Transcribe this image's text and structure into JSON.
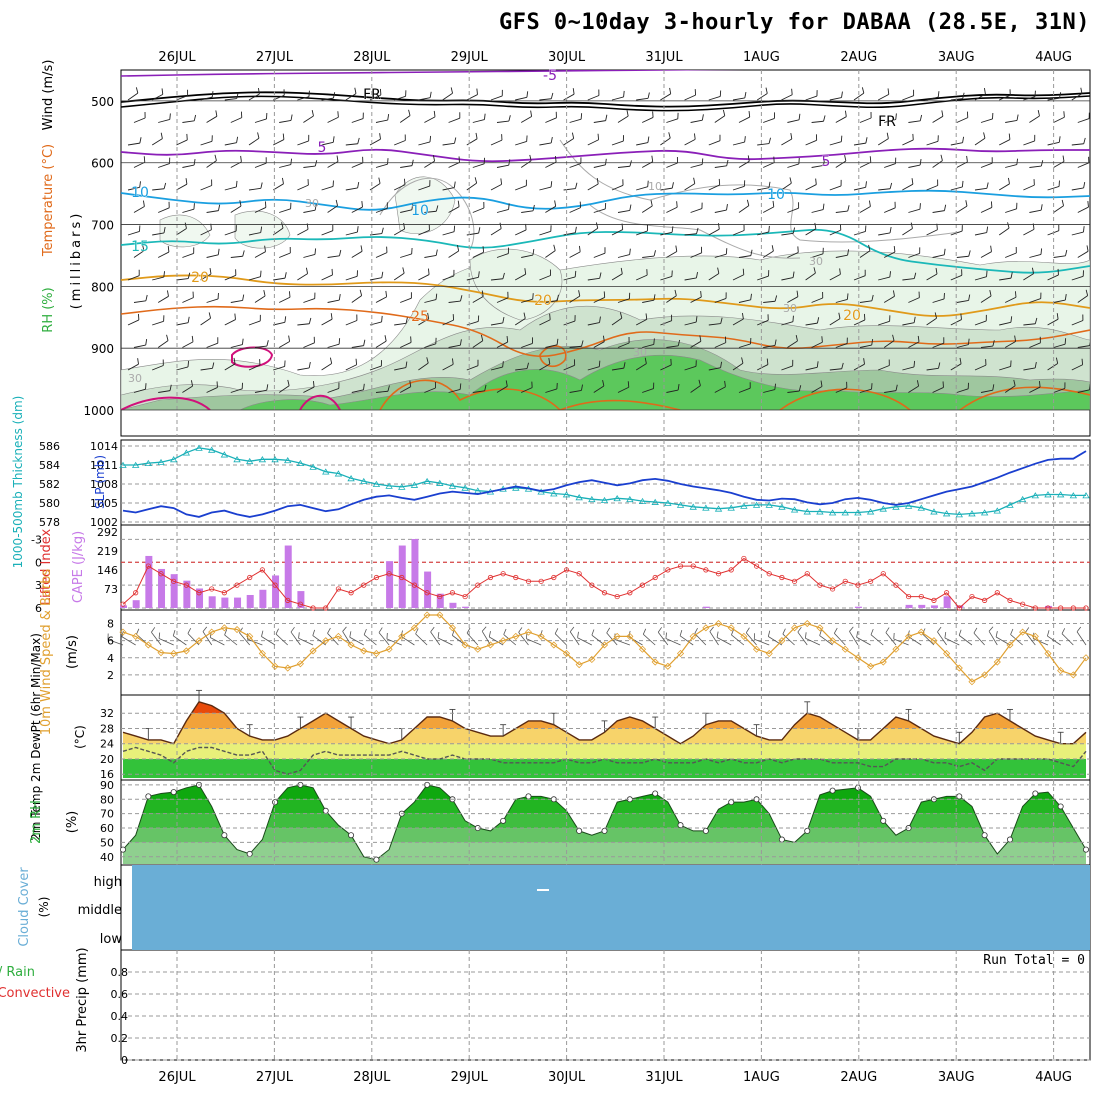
{
  "title": "GFS 0~10day 3-hourly for DABAA (28.5E, 31N)",
  "colors": {
    "purple": "#8a1fb8",
    "black": "#000000",
    "cyan": "#1a9fe0",
    "teal": "#1bb8b8",
    "orange": "#e09a1a",
    "darkorange": "#e06a1a",
    "magenta": "#d0107a",
    "rh_dark": "#2fae3f",
    "rh_mid": "#7fd07f",
    "rh_light": "#cfeecf",
    "gray": "#9a9a9a",
    "slp": "#1a3fcf",
    "thick": "#1ab0b8",
    "li": "#e03030",
    "cape": "#c77ae8",
    "wind": "#e0a030",
    "cloud": "#6aaed6"
  },
  "chart_data": [
    {
      "type": "contour",
      "panel": "upper-air",
      "ylabel_segments": [
        "RH (%)",
        "Temperature (°C)",
        "Wind (m/s)"
      ],
      "yunit": "(millibars)",
      "x_labels": [
        "26JUL",
        "27JUL",
        "28JUL",
        "29JUL",
        "30JUL",
        "31JUL",
        "1AUG",
        "2AUG",
        "3AUG",
        "4AUG"
      ],
      "y_ticks": [
        500,
        600,
        700,
        800,
        900,
        1000
      ],
      "ylim": [
        450,
        1000
      ],
      "isotherms": [
        {
          "name": "-5",
          "values": [
            -5,
            -5,
            -5
          ]
        },
        {
          "name": "FR",
          "values": [
            0,
            0
          ]
        },
        {
          "name": "5",
          "values": [
            5,
            5
          ]
        },
        {
          "name": "10",
          "values": [
            10,
            10,
            10
          ]
        },
        {
          "name": "15",
          "values": [
            15,
            15
          ]
        },
        {
          "name": "20",
          "values": [
            20,
            20,
            20
          ]
        },
        {
          "name": "25",
          "values": [
            25
          ]
        }
      ],
      "contour_labels": [
        "-5",
        "FR",
        "FR",
        "5",
        "5",
        "10",
        "10",
        "10",
        "15",
        "20",
        "20",
        "20",
        "25",
        "10",
        "30",
        "30",
        "30",
        "30",
        "30"
      ]
    },
    {
      "type": "line",
      "panel": "slp-thickness",
      "ylabel_left": "1000-500mb Thickness (dm)",
      "ylabel_right": "SLP (mb)",
      "thickness_ticks": [
        578,
        580,
        582,
        584,
        586
      ],
      "slp_ticks": [
        1002,
        1005,
        1008,
        1011,
        1014
      ],
      "series": [
        {
          "name": "thickness",
          "values": [
            584.0,
            584.0,
            584.2,
            584.3,
            584.6,
            585.3,
            585.8,
            585.6,
            585.1,
            584.6,
            584.4,
            584.6,
            584.6,
            584.5,
            584.2,
            583.8,
            583.3,
            583.1,
            582.6,
            582.3,
            582.0,
            581.8,
            581.7,
            581.9,
            582.3,
            582.1,
            581.8,
            581.6,
            581.3,
            581.2,
            581.5,
            581.6,
            581.5,
            581.2,
            581.0,
            580.9,
            580.6,
            580.4,
            580.3,
            580.5,
            580.4,
            580.2,
            580.1,
            580.0,
            579.8,
            579.6,
            579.5,
            579.4,
            579.5,
            579.7,
            579.8,
            579.8,
            579.6,
            579.3,
            579.1,
            579.1,
            579.0,
            579.0,
            579.0,
            579.1,
            579.4,
            579.6,
            579.7,
            579.5,
            579.1,
            578.9,
            578.8,
            578.9,
            579.0,
            579.2,
            579.8,
            580.4,
            580.8,
            580.9,
            580.9,
            580.8,
            580.8
          ]
        },
        {
          "name": "slp",
          "values": [
            1003.8,
            1003.5,
            1004.0,
            1004.5,
            1004.2,
            1003.2,
            1002.8,
            1003.5,
            1003.8,
            1003.2,
            1002.8,
            1003.2,
            1003.8,
            1004.5,
            1004.7,
            1004.2,
            1003.7,
            1004.0,
            1004.8,
            1005.5,
            1006.0,
            1006.2,
            1005.8,
            1005.5,
            1006.0,
            1006.5,
            1006.8,
            1006.6,
            1006.4,
            1006.8,
            1007.2,
            1007.6,
            1007.3,
            1006.9,
            1007.2,
            1007.8,
            1008.3,
            1008.6,
            1008.2,
            1007.8,
            1008.1,
            1008.6,
            1008.8,
            1008.5,
            1008.0,
            1007.6,
            1007.3,
            1007.0,
            1006.6,
            1006.0,
            1005.5,
            1005.4,
            1005.7,
            1005.6,
            1005.1,
            1004.8,
            1005.0,
            1005.6,
            1005.8,
            1005.5,
            1005.0,
            1004.7,
            1005.0,
            1005.6,
            1006.2,
            1006.8,
            1007.2,
            1007.6,
            1008.3,
            1009.0,
            1009.8,
            1010.5,
            1011.2,
            1011.8,
            1012.0,
            1012.0,
            1013.2
          ]
        }
      ]
    },
    {
      "type": "bar",
      "panel": "instability",
      "ylabel_left": "Lifted Index",
      "ylabel_right": "CAPE (J/kg)",
      "li_ticks": [
        -3,
        0,
        3,
        6
      ],
      "cape_ticks": [
        73,
        146,
        219,
        292
      ],
      "series": [
        {
          "name": "lifted_index",
          "values": [
            5.5,
            4.0,
            0.5,
            1.5,
            2.5,
            3.0,
            4.0,
            3.5,
            4.0,
            3.0,
            2.0,
            1.0,
            3.0,
            5.0,
            5.5,
            6.0,
            6.0,
            3.5,
            4.0,
            3.0,
            2.0,
            1.5,
            2.0,
            3.0,
            4.0,
            4.5,
            4.0,
            4.5,
            3.0,
            2.0,
            1.5,
            2.0,
            2.5,
            2.5,
            2.0,
            1.0,
            1.5,
            3.0,
            4.0,
            4.5,
            4.0,
            3.0,
            2.0,
            1.0,
            0.5,
            0.5,
            1.0,
            1.5,
            1.0,
            -0.5,
            0.5,
            1.5,
            2.0,
            2.5,
            1.5,
            3.0,
            3.5,
            2.5,
            3.0,
            2.5,
            1.5,
            3.0,
            4.5,
            4.5,
            5.0,
            4.0,
            6.0,
            4.5,
            5.0,
            4.0,
            5.0,
            5.5,
            6.0,
            6.0,
            6.0,
            6.0,
            6.0
          ]
        },
        {
          "name": "cape",
          "values": [
            10,
            30,
            200,
            150,
            130,
            105,
            75,
            45,
            40,
            40,
            50,
            70,
            125,
            240,
            65,
            0,
            0,
            0,
            0,
            0,
            0,
            180,
            240,
            265,
            140,
            55,
            20,
            5,
            0,
            0,
            0,
            0,
            0,
            0,
            0,
            0,
            0,
            0,
            0,
            0,
            0,
            0,
            0,
            0,
            0,
            0,
            0,
            0,
            0,
            0,
            0,
            0,
            0,
            0,
            0,
            0,
            0,
            0,
            0,
            0,
            0,
            0,
            0,
            0,
            0,
            0,
            0,
            0,
            0,
            0,
            0,
            0,
            0,
            0,
            0,
            0,
            0
          ]
        }
      ]
    },
    {
      "type": "line",
      "panel": "wind",
      "ylabel": "10m Wind Speed & Barbs",
      "yunit": "(m/s)",
      "y_ticks": [
        2,
        4,
        6,
        8
      ],
      "ylim": [
        0,
        9
      ],
      "series": [
        {
          "name": "speed",
          "values": [
            7.0,
            6.5,
            5.5,
            4.6,
            4.5,
            4.8,
            6.0,
            7.0,
            7.5,
            7.3,
            6.5,
            4.5,
            3.0,
            2.8,
            3.3,
            4.8,
            6.0,
            6.5,
            5.5,
            4.8,
            4.5,
            5.0,
            6.5,
            7.5,
            9.0,
            9.0,
            7.5,
            5.5,
            5.0,
            5.5,
            6.0,
            6.5,
            7.0,
            6.5,
            5.5,
            4.5,
            3.2,
            3.8,
            5.5,
            6.5,
            6.5,
            5.0,
            3.5,
            3.0,
            4.5,
            6.5,
            7.5,
            8.0,
            7.5,
            6.5,
            5.0,
            4.5,
            6.0,
            7.5,
            8.0,
            7.5,
            6.0,
            5.0,
            4.0,
            3.0,
            3.5,
            5.0,
            6.5,
            7.0,
            6.0,
            4.5,
            2.8,
            1.2,
            2.0,
            3.5,
            5.5,
            7.0,
            6.5,
            4.5,
            2.5,
            2.0,
            4.0
          ]
        }
      ]
    },
    {
      "type": "area",
      "panel": "temperature",
      "ylabel": "2m Temp 2m DewPt (6hr Min/Max)",
      "yunit": "(°C)",
      "y_ticks": [
        16,
        20,
        24,
        28,
        32
      ],
      "ylim": [
        15,
        36
      ],
      "series": [
        {
          "name": "temp",
          "values": [
            27,
            26,
            25,
            25,
            24,
            30,
            35,
            34,
            32,
            28,
            26,
            25,
            25,
            26,
            28,
            30,
            32,
            30,
            28,
            26,
            25,
            24,
            25,
            28,
            31,
            31,
            30,
            28,
            27,
            26,
            26,
            28,
            30,
            30,
            29,
            27,
            25,
            25,
            27,
            30,
            31,
            30,
            28,
            26,
            24,
            26,
            29,
            30,
            30,
            28,
            26,
            25,
            25,
            29,
            32,
            31,
            29,
            27,
            25,
            25,
            28,
            31,
            30,
            28,
            26,
            25,
            24,
            27,
            31,
            32,
            30,
            28,
            26,
            25,
            24,
            24,
            27
          ]
        },
        {
          "name": "dewpt",
          "values": [
            22,
            23,
            22,
            21,
            19,
            22,
            23,
            23,
            22,
            21,
            21,
            22,
            17,
            16,
            17,
            21,
            22,
            21,
            21,
            21,
            21,
            21,
            22,
            21,
            20,
            20,
            21,
            20,
            20,
            20,
            19,
            19,
            19,
            19,
            19,
            20,
            19,
            19,
            20,
            19,
            19,
            19,
            20,
            19,
            19,
            19,
            20,
            19,
            20,
            19,
            19,
            20,
            19,
            20,
            20,
            20,
            19,
            19,
            19,
            18,
            18,
            20,
            20,
            20,
            19,
            19,
            18,
            19,
            17,
            20,
            20,
            20,
            20,
            20,
            19,
            18,
            22
          ]
        }
      ]
    },
    {
      "type": "area",
      "panel": "rh",
      "ylabel": "2m RH",
      "yunit": "(%)",
      "y_ticks": [
        40,
        50,
        60,
        70,
        80,
        90
      ],
      "ylim": [
        35,
        92
      ],
      "series": [
        {
          "name": "rh",
          "values": [
            45,
            55,
            82,
            84,
            85,
            88,
            90,
            75,
            55,
            45,
            42,
            52,
            78,
            88,
            90,
            88,
            72,
            62,
            55,
            40,
            38,
            45,
            70,
            78,
            90,
            88,
            80,
            65,
            60,
            58,
            65,
            80,
            82,
            82,
            80,
            72,
            58,
            55,
            58,
            78,
            80,
            82,
            84,
            78,
            62,
            58,
            58,
            73,
            78,
            78,
            80,
            70,
            52,
            50,
            58,
            83,
            86,
            87,
            88,
            82,
            65,
            55,
            60,
            78,
            80,
            82,
            82,
            75,
            55,
            42,
            52,
            75,
            84,
            85,
            75,
            60,
            45
          ]
        }
      ]
    },
    {
      "type": "area",
      "panel": "cloud",
      "ylabel": "Cloud Cover",
      "yunit": "(%)",
      "y_labels": [
        "high",
        "middle",
        "low"
      ],
      "series": [
        {
          "name": "cover",
          "values": [
            100
          ]
        }
      ]
    },
    {
      "type": "bar",
      "panel": "precip",
      "ylabel_segments": [
        "Total / Rain",
        "Convective"
      ],
      "ylabel": "3hr Precip (mm)",
      "run_total": "Run Total = 0",
      "y_ticks": [
        "0",
        "0.2",
        "0.4",
        "0.6",
        "0.8"
      ],
      "ylim": [
        0,
        1
      ],
      "series": [
        {
          "name": "precip",
          "values": [
            0
          ]
        }
      ],
      "x_labels": [
        "26JUL",
        "27JUL",
        "28JUL",
        "29JUL",
        "30JUL",
        "31JUL",
        "1AUG",
        "2AUG",
        "3AUG",
        "4AUG"
      ]
    }
  ]
}
